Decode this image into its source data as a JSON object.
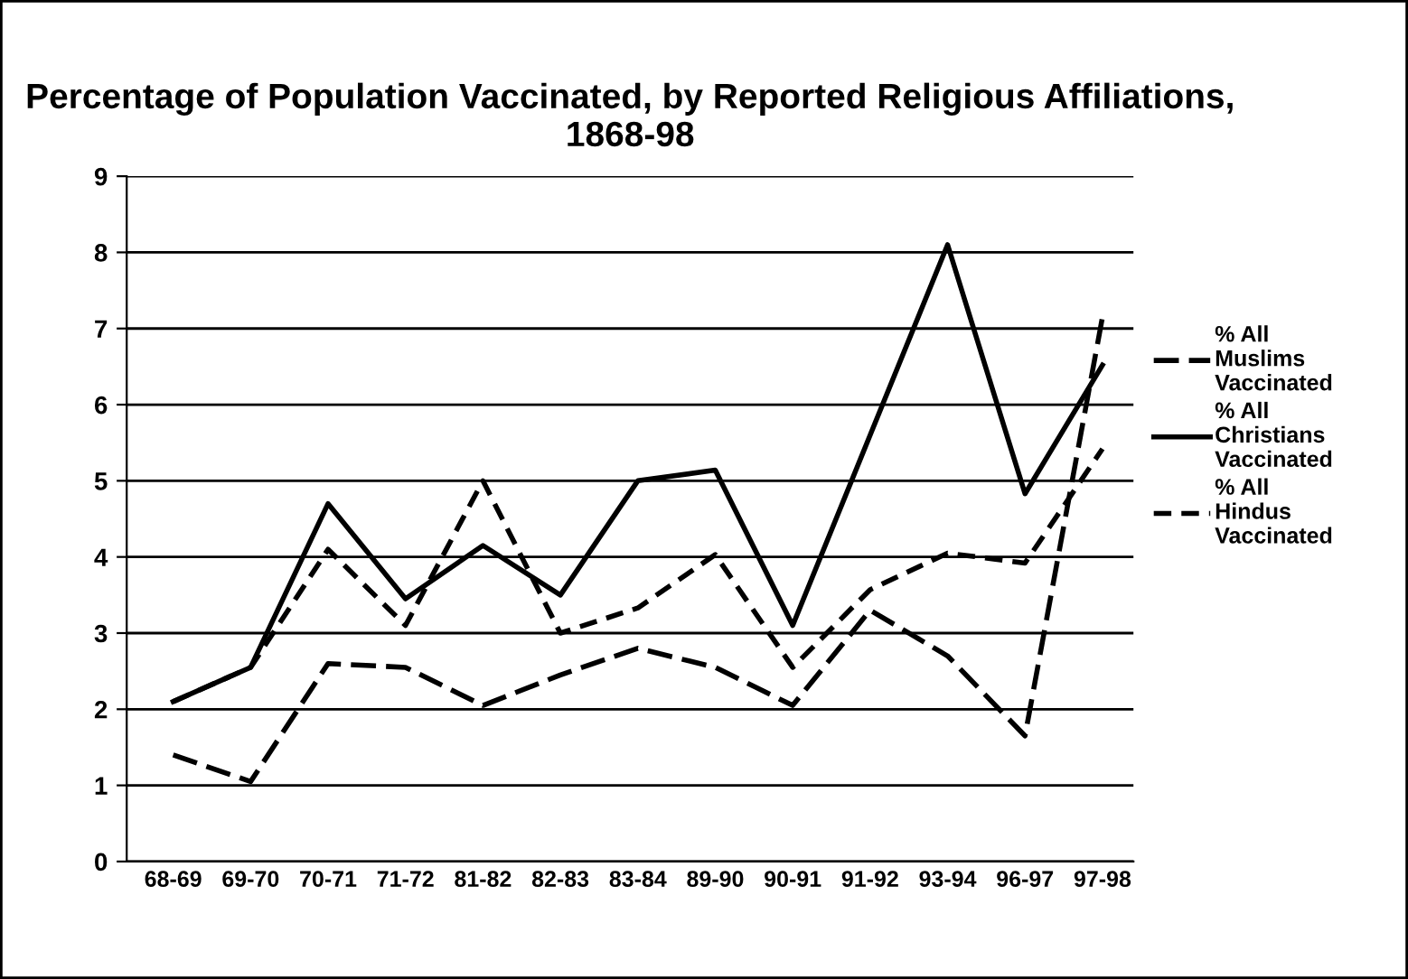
{
  "chart_data": {
    "type": "line",
    "title": "Percentage of Population Vaccinated, by Reported Religious Affiliations, 1868-98",
    "categories": [
      "68-69",
      "69-70",
      "70-71",
      "71-72",
      "81-82",
      "82-83",
      "83-84",
      "89-90",
      "90-91",
      "91-92",
      "93-94",
      "96-97",
      "97-98"
    ],
    "series": [
      {
        "name": "% All Muslims Vaccinated",
        "color": "#000000",
        "line_style": "dashed",
        "values": [
          1.4,
          1.05,
          2.6,
          2.55,
          2.05,
          2.45,
          2.8,
          2.55,
          2.05,
          3.3,
          2.7,
          1.65,
          7.15
        ]
      },
      {
        "name": "% All Christians Vaccinated",
        "color": "#000000",
        "line_style": "solid",
        "values": [
          2.1,
          2.55,
          4.7,
          3.45,
          4.15,
          3.5,
          5.0,
          5.14,
          3.1,
          5.6,
          8.1,
          4.83,
          6.52
        ]
      },
      {
        "name": "% All Hindus Vaccinated",
        "color": "#000000",
        "line_style": "dotted",
        "values": [
          2.1,
          2.55,
          4.1,
          3.1,
          5.0,
          3.0,
          3.33,
          4.03,
          2.55,
          3.57,
          4.05,
          3.92,
          5.42
        ]
      }
    ],
    "ylim": [
      0,
      9
    ],
    "yticks": [
      0,
      1,
      2,
      3,
      4,
      5,
      6,
      7,
      8,
      9
    ],
    "grid": "y",
    "legend": "right",
    "marker": "none"
  }
}
